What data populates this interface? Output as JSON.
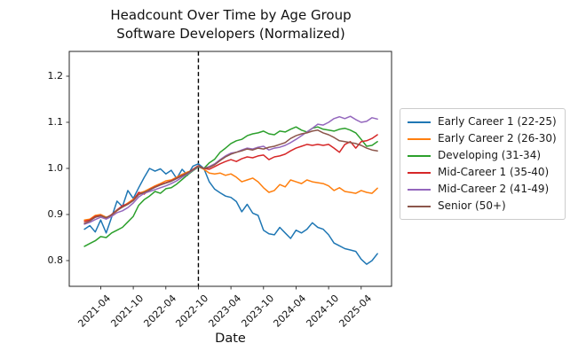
{
  "figure": {
    "title_line1": "Headcount Over Time by Age Group",
    "title_line2": "Software Developers (Normalized)",
    "xlabel": "Date"
  },
  "chart_data": {
    "type": "line",
    "title": "Headcount Over Time by Age Group",
    "subtitle": "Software Developers (Normalized)",
    "xlabel": "Date",
    "ylabel": "",
    "grid": false,
    "legend_position": "outside-right",
    "ylim": [
      0.744,
      1.254
    ],
    "yticks": [
      0.8,
      0.9,
      1.0,
      1.1,
      1.2
    ],
    "xticks": [
      "2021-04",
      "2021-10",
      "2022-04",
      "2022-10",
      "2023-04",
      "2023-10",
      "2024-04",
      "2024-10",
      "2025-04"
    ],
    "event_line": {
      "x": "2022-10",
      "style": "dashed",
      "color": "#000000"
    },
    "x": [
      "2021-01",
      "2021-02",
      "2021-03",
      "2021-04",
      "2021-05",
      "2021-06",
      "2021-07",
      "2021-08",
      "2021-09",
      "2021-10",
      "2021-11",
      "2021-12",
      "2022-01",
      "2022-02",
      "2022-03",
      "2022-04",
      "2022-05",
      "2022-06",
      "2022-07",
      "2022-08",
      "2022-09",
      "2022-10",
      "2022-11",
      "2022-12",
      "2023-01",
      "2023-02",
      "2023-03",
      "2023-04",
      "2023-05",
      "2023-06",
      "2023-07",
      "2023-08",
      "2023-09",
      "2023-10",
      "2023-11",
      "2023-12",
      "2024-01",
      "2024-02",
      "2024-03",
      "2024-04",
      "2024-05",
      "2024-06",
      "2024-07",
      "2024-08",
      "2024-09",
      "2024-10",
      "2024-11",
      "2024-12",
      "2025-01",
      "2025-02",
      "2025-03",
      "2025-04",
      "2025-05",
      "2025-06",
      "2025-07"
    ],
    "series": [
      {
        "name": "Early Career 1 (22-25)",
        "color": "#1f77b4",
        "values": [
          0.868,
          0.876,
          0.862,
          0.888,
          0.86,
          0.894,
          0.929,
          0.917,
          0.952,
          0.935,
          0.958,
          0.98,
          1.0,
          0.994,
          0.999,
          0.988,
          0.996,
          0.978,
          0.998,
          0.985,
          1.005,
          1.01,
          1.0,
          0.971,
          0.955,
          0.947,
          0.94,
          0.937,
          0.928,
          0.906,
          0.922,
          0.903,
          0.898,
          0.866,
          0.858,
          0.856,
          0.872,
          0.86,
          0.848,
          0.866,
          0.86,
          0.868,
          0.882,
          0.872,
          0.868,
          0.856,
          0.838,
          0.832,
          0.826,
          0.823,
          0.82,
          0.803,
          0.792,
          0.8,
          0.815
        ]
      },
      {
        "name": "Early Career 2 (26-30)",
        "color": "#ff7f0e",
        "values": [
          0.888,
          0.89,
          0.898,
          0.9,
          0.894,
          0.898,
          0.908,
          0.917,
          0.925,
          0.933,
          0.946,
          0.95,
          0.956,
          0.962,
          0.967,
          0.973,
          0.975,
          0.981,
          0.987,
          0.992,
          0.996,
          1.004,
          0.998,
          0.99,
          0.988,
          0.99,
          0.985,
          0.988,
          0.981,
          0.971,
          0.975,
          0.979,
          0.971,
          0.958,
          0.948,
          0.952,
          0.965,
          0.96,
          0.975,
          0.971,
          0.967,
          0.975,
          0.971,
          0.969,
          0.967,
          0.962,
          0.952,
          0.958,
          0.95,
          0.948,
          0.946,
          0.952,
          0.948,
          0.946,
          0.957
        ]
      },
      {
        "name": "Developing (31-34)",
        "color": "#2ca02c",
        "values": [
          0.831,
          0.837,
          0.843,
          0.852,
          0.85,
          0.86,
          0.866,
          0.872,
          0.884,
          0.896,
          0.92,
          0.932,
          0.94,
          0.95,
          0.946,
          0.956,
          0.958,
          0.966,
          0.976,
          0.986,
          0.995,
          1.003,
          1.0,
          1.012,
          1.02,
          1.035,
          1.044,
          1.054,
          1.06,
          1.063,
          1.071,
          1.075,
          1.077,
          1.081,
          1.075,
          1.073,
          1.081,
          1.079,
          1.085,
          1.09,
          1.083,
          1.079,
          1.087,
          1.09,
          1.085,
          1.083,
          1.081,
          1.085,
          1.087,
          1.083,
          1.077,
          1.063,
          1.048,
          1.05,
          1.058
        ]
      },
      {
        "name": "Mid-Career 1 (35-40)",
        "color": "#d62728",
        "values": [
          0.885,
          0.888,
          0.896,
          0.898,
          0.892,
          0.9,
          0.91,
          0.919,
          0.923,
          0.931,
          0.948,
          0.944,
          0.954,
          0.96,
          0.965,
          0.969,
          0.973,
          0.979,
          0.985,
          0.99,
          0.998,
          1.006,
          1.0,
          0.998,
          1.004,
          1.01,
          1.015,
          1.019,
          1.015,
          1.021,
          1.025,
          1.023,
          1.027,
          1.029,
          1.019,
          1.025,
          1.027,
          1.031,
          1.038,
          1.044,
          1.048,
          1.052,
          1.05,
          1.052,
          1.05,
          1.052,
          1.044,
          1.035,
          1.052,
          1.058,
          1.044,
          1.058,
          1.06,
          1.065,
          1.073
        ]
      },
      {
        "name": "Mid-Career 2 (41-49)",
        "color": "#9467bd",
        "values": [
          0.879,
          0.883,
          0.889,
          0.894,
          0.89,
          0.896,
          0.904,
          0.908,
          0.915,
          0.925,
          0.938,
          0.946,
          0.95,
          0.954,
          0.958,
          0.962,
          0.967,
          0.973,
          0.981,
          0.988,
          0.996,
          1.004,
          1.0,
          1.004,
          1.01,
          1.019,
          1.027,
          1.033,
          1.035,
          1.04,
          1.044,
          1.042,
          1.046,
          1.048,
          1.04,
          1.044,
          1.046,
          1.05,
          1.056,
          1.063,
          1.071,
          1.079,
          1.087,
          1.096,
          1.094,
          1.1,
          1.108,
          1.112,
          1.108,
          1.113,
          1.106,
          1.1,
          1.102,
          1.11,
          1.107
        ]
      },
      {
        "name": "Senior (50+)",
        "color": "#8c564b",
        "values": [
          0.881,
          0.886,
          0.894,
          0.897,
          0.893,
          0.899,
          0.909,
          0.916,
          0.922,
          0.93,
          0.943,
          0.948,
          0.953,
          0.959,
          0.964,
          0.968,
          0.972,
          0.978,
          0.984,
          0.99,
          0.997,
          1.005,
          1.0,
          1.002,
          1.008,
          1.017,
          1.025,
          1.031,
          1.035,
          1.038,
          1.042,
          1.04,
          1.044,
          1.042,
          1.046,
          1.048,
          1.052,
          1.056,
          1.065,
          1.071,
          1.075,
          1.077,
          1.081,
          1.083,
          1.077,
          1.073,
          1.067,
          1.06,
          1.058,
          1.056,
          1.054,
          1.05,
          1.044,
          1.04,
          1.038
        ]
      }
    ]
  }
}
